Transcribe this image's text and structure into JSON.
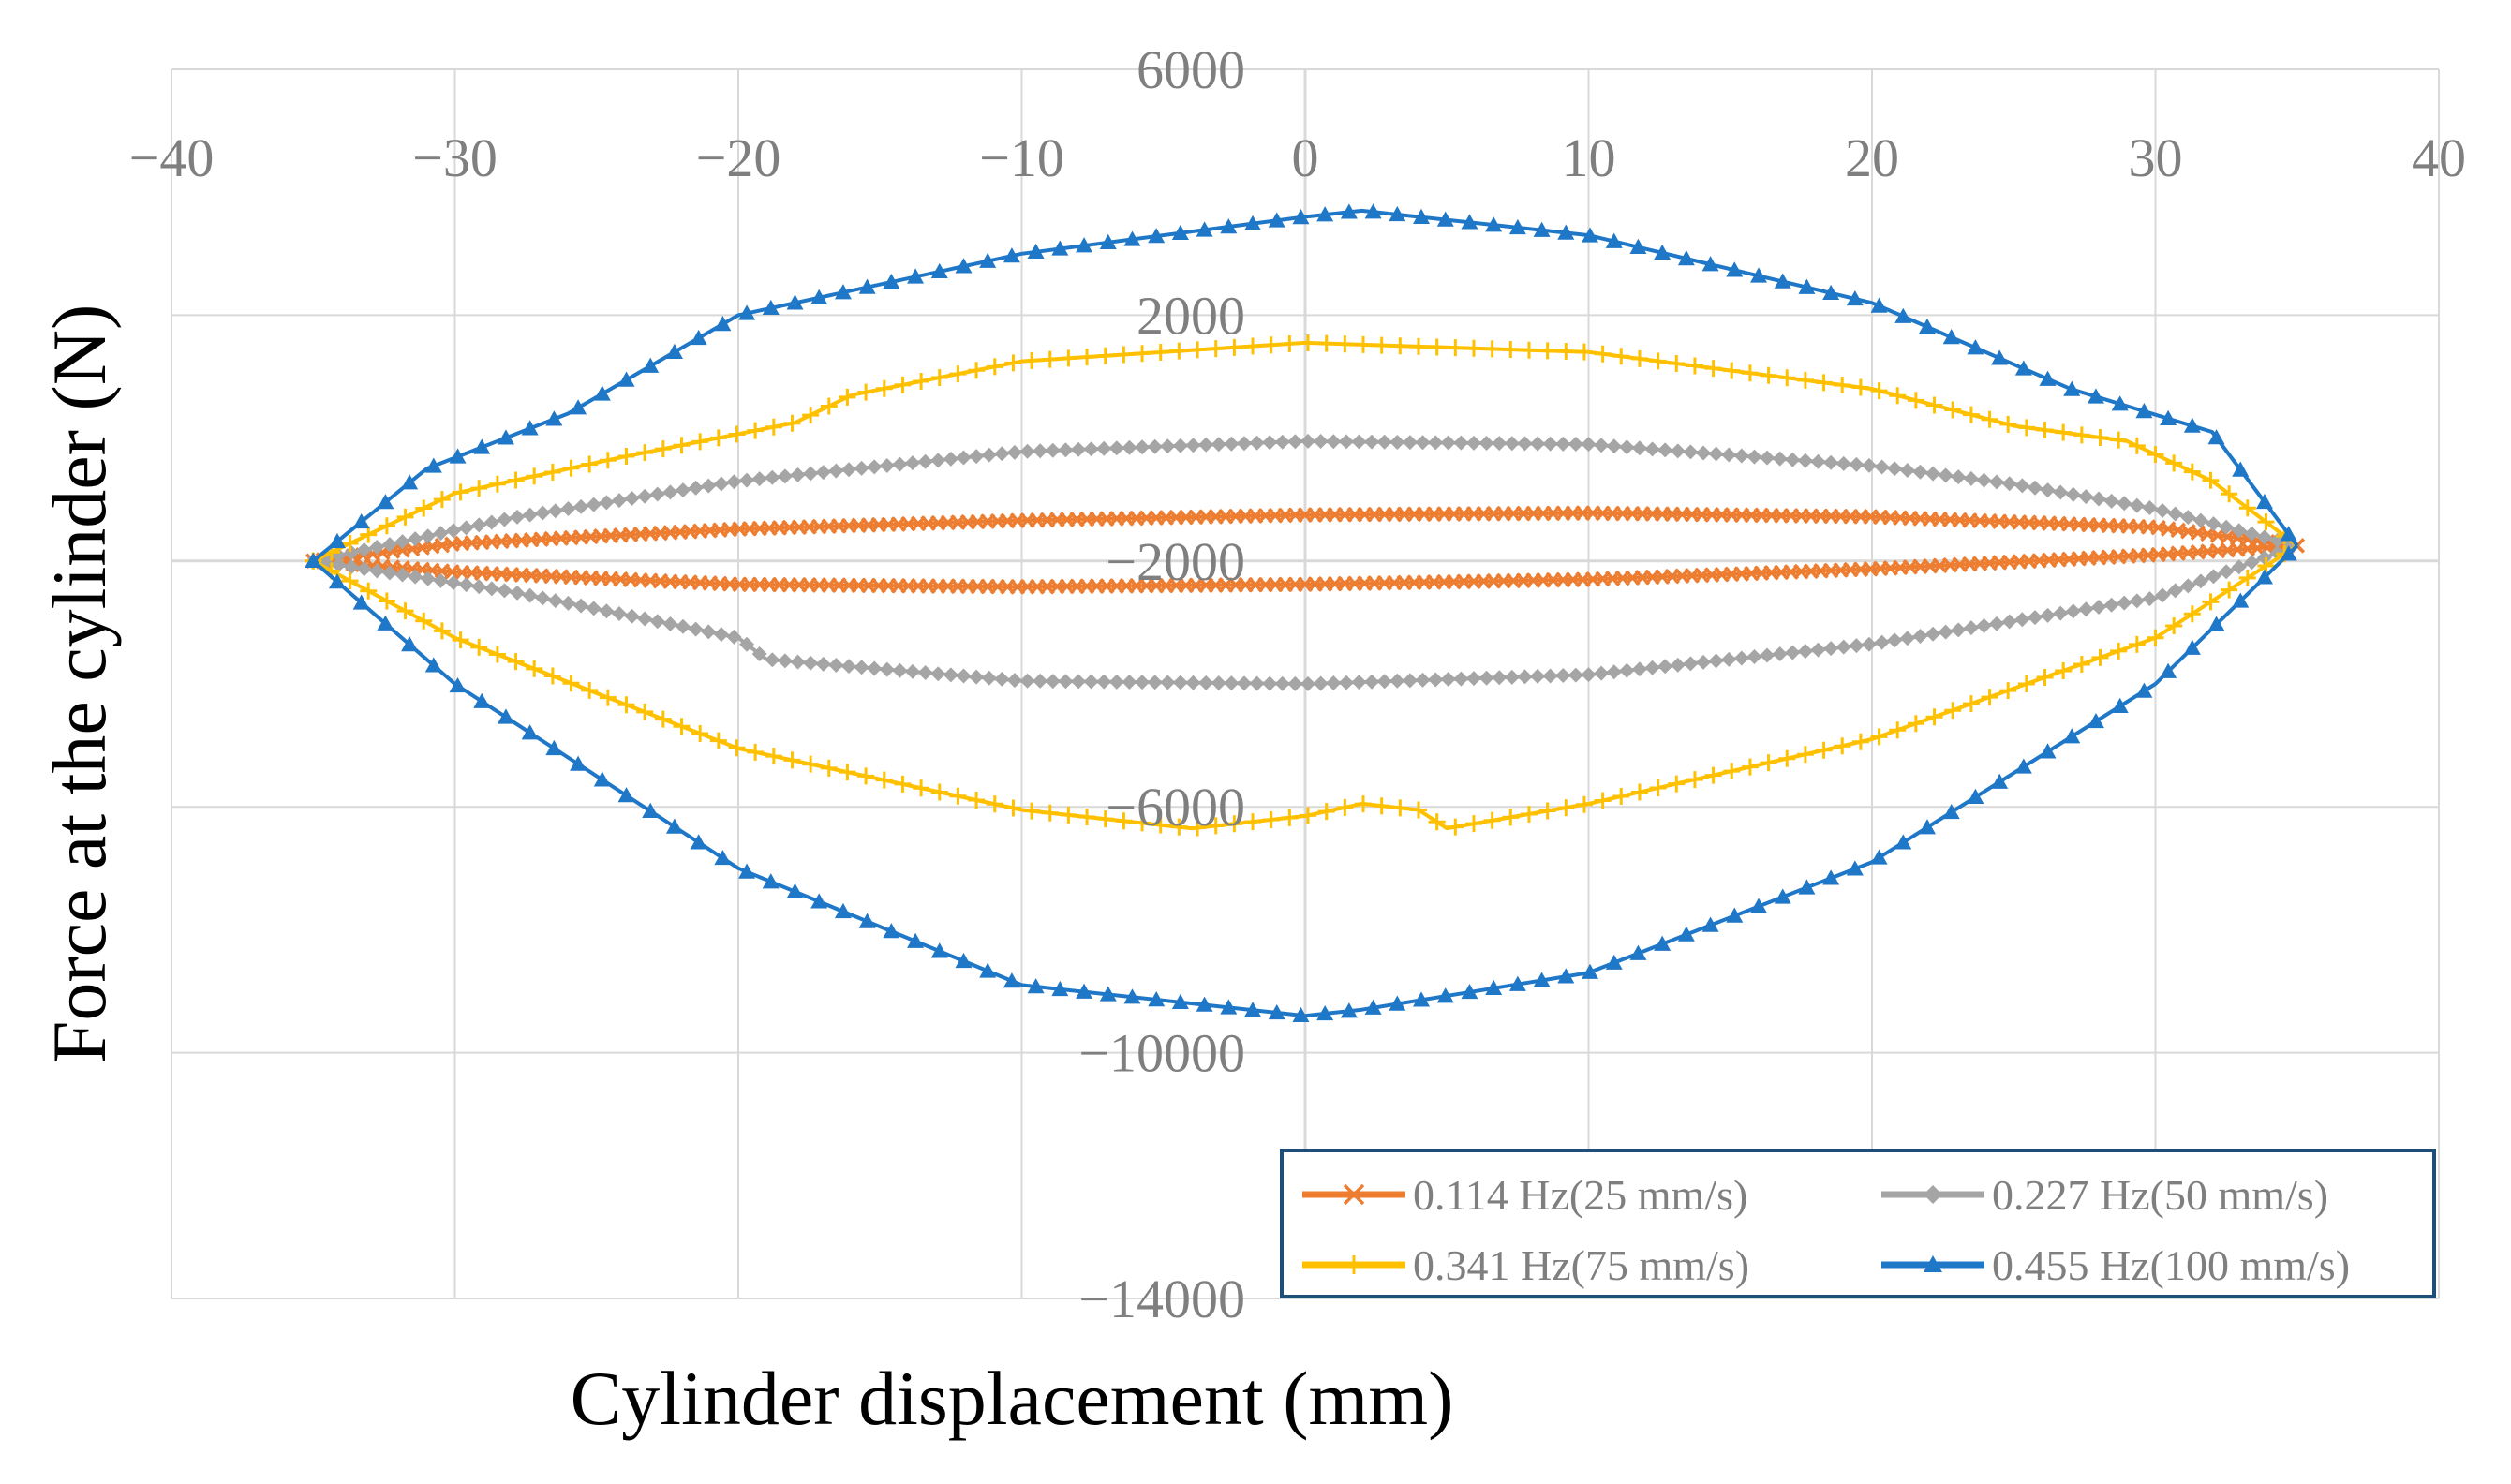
{
  "chart_data": {
    "type": "line",
    "xlabel": "Cylinder displacement (mm)",
    "ylabel": "Force at the cylinder (N)",
    "xlim": [
      -40,
      40
    ],
    "ylim": [
      -14000,
      6000
    ],
    "x_ticks": [
      -40,
      -30,
      -20,
      -10,
      0,
      10,
      20,
      30,
      40
    ],
    "y_ticks": [
      6000,
      2000,
      -2000,
      -6000,
      -10000,
      -14000
    ],
    "x_tick_labels": [
      "−40",
      "−30",
      "−20",
      "−10",
      "0",
      "10",
      "20",
      "30",
      "40"
    ],
    "y_tick_labels": [
      "6000",
      "2000",
      "−2000",
      "−6000",
      "−10000",
      "−14000"
    ],
    "grid": true,
    "legend_position": "bottom-right",
    "series": [
      {
        "name": "0.114 Hz(25 mm/s)",
        "color": "#ED7D31",
        "marker": "x",
        "upper": [
          [
            -35,
            -2000
          ],
          [
            -30,
            -1720
          ],
          [
            -20,
            -1480
          ],
          [
            -10,
            -1340
          ],
          [
            0,
            -1250
          ],
          [
            10,
            -1220
          ],
          [
            20,
            -1280
          ],
          [
            30,
            -1450
          ],
          [
            35,
            -1750
          ]
        ],
        "lower": [
          [
            -35,
            -2000
          ],
          [
            -30,
            -2180
          ],
          [
            -20,
            -2380
          ],
          [
            -10,
            -2420
          ],
          [
            0,
            -2380
          ],
          [
            10,
            -2300
          ],
          [
            20,
            -2130
          ],
          [
            30,
            -1900
          ],
          [
            35,
            -1750
          ]
        ]
      },
      {
        "name": "0.227 Hz(50 mm/s)",
        "color": "#A5A5A5",
        "marker": "diamond",
        "upper": [
          [
            -35,
            -2000
          ],
          [
            -28,
            -1300
          ],
          [
            -20,
            -700
          ],
          [
            -10,
            -220
          ],
          [
            0,
            -50
          ],
          [
            10,
            -100
          ],
          [
            20,
            -450
          ],
          [
            25,
            -750
          ],
          [
            30,
            -1150
          ],
          [
            35,
            -1750
          ]
        ],
        "lower": [
          [
            -35,
            -2000
          ],
          [
            -28,
            -2500
          ],
          [
            -20,
            -3250
          ],
          [
            -19,
            -3600
          ],
          [
            -10,
            -3950
          ],
          [
            0,
            -4000
          ],
          [
            10,
            -3850
          ],
          [
            20,
            -3350
          ],
          [
            30,
            -2600
          ],
          [
            35,
            -1750
          ]
        ]
      },
      {
        "name": "0.341 Hz(75 mm/s)",
        "color": "#FFC000",
        "marker": "plus",
        "upper": [
          [
            -35,
            -2000
          ],
          [
            -30,
            -900
          ],
          [
            -24,
            -300
          ],
          [
            -18,
            250
          ],
          [
            -16,
            700
          ],
          [
            -10,
            1250
          ],
          [
            0,
            1550
          ],
          [
            10,
            1400
          ],
          [
            20,
            800
          ],
          [
            25,
            200
          ],
          [
            29,
            -50
          ],
          [
            32,
            -700
          ],
          [
            35,
            -1750
          ]
        ],
        "lower": [
          [
            -35,
            -2000
          ],
          [
            -30,
            -3250
          ],
          [
            -20,
            -5050
          ],
          [
            -10,
            -6050
          ],
          [
            -4,
            -6350
          ],
          [
            0,
            -6150
          ],
          [
            2,
            -5950
          ],
          [
            4,
            -6050
          ],
          [
            5,
            -6350
          ],
          [
            10,
            -5950
          ],
          [
            20,
            -4900
          ],
          [
            30,
            -3250
          ],
          [
            35,
            -1750
          ]
        ]
      },
      {
        "name": "0.455 Hz(100 mm/s)",
        "color": "#1F77C8",
        "marker": "triangle",
        "upper": [
          [
            -35,
            -2000
          ],
          [
            -31,
            -500
          ],
          [
            -26,
            400
          ],
          [
            -20,
            2000
          ],
          [
            -10,
            3000
          ],
          [
            0,
            3600
          ],
          [
            2,
            3700
          ],
          [
            10,
            3300
          ],
          [
            20,
            2200
          ],
          [
            27,
            800
          ],
          [
            32,
            100
          ],
          [
            35,
            -1750
          ]
        ],
        "lower": [
          [
            -35,
            -2000
          ],
          [
            -30,
            -4000
          ],
          [
            -20,
            -7000
          ],
          [
            -10,
            -8900
          ],
          [
            0,
            -9400
          ],
          [
            2,
            -9300
          ],
          [
            10,
            -8700
          ],
          [
            20,
            -6900
          ],
          [
            30,
            -4000
          ],
          [
            35,
            -1750
          ]
        ]
      }
    ]
  }
}
